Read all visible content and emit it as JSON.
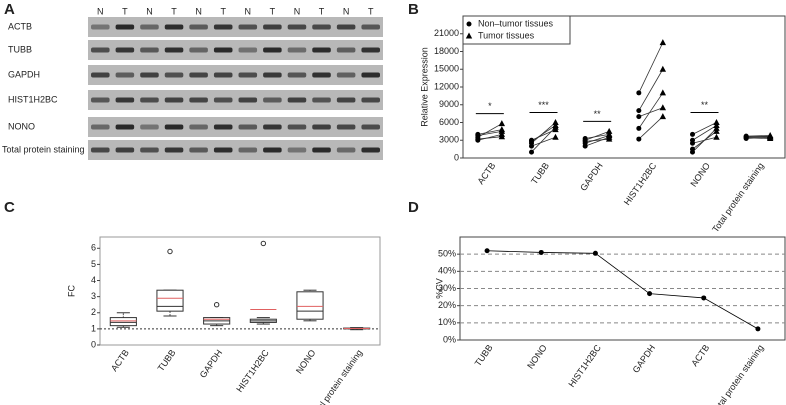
{
  "panel_labels": [
    "A",
    "B",
    "C",
    "D"
  ],
  "blot": {
    "lanes": [
      "N",
      "T",
      "N",
      "T",
      "N",
      "T",
      "N",
      "T",
      "N",
      "T",
      "N",
      "T"
    ],
    "rows": [
      "ACTB",
      "TUBB",
      "GAPDH",
      "HIST1H2BC",
      "NONO",
      "Total protein staining"
    ]
  },
  "chart_data": [
    {
      "type": "scatter",
      "ylabel": "Relative Expression",
      "categories": [
        "ACTB",
        "TUBB",
        "GAPDH",
        "HIST1H2BC",
        "NONO",
        "Total protein staining"
      ],
      "series": [
        {
          "name": "Non–tumor tissues",
          "marker": "circle",
          "color": "#000000",
          "values": [
            [
              3000,
              3500,
              3800,
              3200,
              4000
            ],
            [
              1000,
              2500,
              2800,
              2000,
              3000
            ],
            [
              2000,
              3000,
              3300,
              2500,
              2800
            ],
            [
              11000,
              8000,
              5000,
              7000,
              3200
            ],
            [
              4000,
              3000,
              1500,
              2500,
              1000
            ],
            [
              3500,
              3700,
              3300,
              3600,
              3400
            ]
          ]
        },
        {
          "name": "Tumor tissues",
          "marker": "triangle",
          "color": "#000000",
          "values": [
            [
              4000,
              5800,
              4500,
              3600,
              4800
            ],
            [
              5200,
              6000,
              5500,
              3500,
              4800
            ],
            [
              3500,
              4500,
              4000,
              3800,
              3200
            ],
            [
              19500,
              15000,
              11000,
              8500,
              7000
            ],
            [
              6000,
              5500,
              4500,
              3500,
              5000
            ],
            [
              3600,
              3800,
              3500,
              3700,
              3300
            ]
          ]
        }
      ],
      "annotations": [
        {
          "x": "ACTB",
          "text": "*"
        },
        {
          "x": "TUBB",
          "text": "***"
        },
        {
          "x": "GAPDH",
          "text": "**"
        },
        {
          "x": "NONO",
          "text": "**"
        }
      ],
      "ylim": [
        0,
        24000
      ],
      "yticks": [
        0,
        3000,
        6000,
        9000,
        12000,
        15000,
        18000,
        21000
      ],
      "legend": "top-left"
    },
    {
      "type": "box",
      "ylabel": "FC",
      "categories": [
        "ACTB",
        "TUBB",
        "GAPDH",
        "HIST1H2BC",
        "NONO",
        "Total protein staining"
      ],
      "boxes": [
        {
          "min": 1.1,
          "q1": 1.2,
          "median": 1.4,
          "q3": 1.7,
          "max": 2.0,
          "mean": 1.5,
          "outliers": []
        },
        {
          "min": 1.8,
          "q1": 2.1,
          "median": 2.4,
          "q3": 3.4,
          "max": 3.4,
          "mean": 2.9,
          "outliers": [
            5.8
          ]
        },
        {
          "min": 1.2,
          "q1": 1.3,
          "median": 1.5,
          "q3": 1.7,
          "max": 1.7,
          "mean": 1.6,
          "outliers": [
            2.5
          ]
        },
        {
          "min": 1.3,
          "q1": 1.4,
          "median": 1.5,
          "q3": 1.6,
          "max": 1.7,
          "mean": 2.2,
          "outliers": [
            6.3
          ]
        },
        {
          "min": 1.5,
          "q1": 1.6,
          "median": 2.1,
          "q3": 3.3,
          "max": 3.4,
          "mean": 2.4,
          "outliers": []
        },
        {
          "min": 0.95,
          "q1": 1.0,
          "median": 1.02,
          "q3": 1.05,
          "max": 1.08,
          "mean": 1.02,
          "outliers": []
        }
      ],
      "mean_color": "#e06060",
      "reference_line": 1,
      "ylim": [
        0,
        6.7
      ],
      "yticks": [
        0,
        1,
        2,
        3,
        4,
        5,
        6
      ]
    },
    {
      "type": "line",
      "ylabel": "%CV",
      "categories": [
        "TUBB",
        "NONO",
        "HIST1H2BC",
        "GAPDH",
        "ACTB",
        "Total protein staining"
      ],
      "values": [
        52,
        51,
        50.5,
        27,
        24.5,
        6.5
      ],
      "color": "#000000",
      "ylim": [
        0,
        60
      ],
      "yticks": [
        {
          "value": 0,
          "label": "0%"
        },
        {
          "value": 10,
          "label": "10%"
        },
        {
          "value": 20,
          "label": "20%"
        },
        {
          "value": 30,
          "label": "30%"
        },
        {
          "value": 40,
          "label": "40%"
        },
        {
          "value": 50,
          "label": "50%"
        }
      ],
      "grid": true
    }
  ]
}
